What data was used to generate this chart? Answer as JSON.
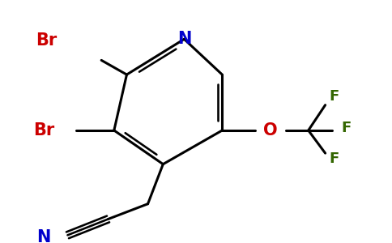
{
  "background_color": "#ffffff",
  "bond_color": "#000000",
  "atom_colors": {
    "N": "#0000cc",
    "Br": "#cc0000",
    "O": "#cc0000",
    "F": "#336600"
  },
  "lw": 2.2,
  "fs_heavy": 15,
  "fs_f": 13
}
